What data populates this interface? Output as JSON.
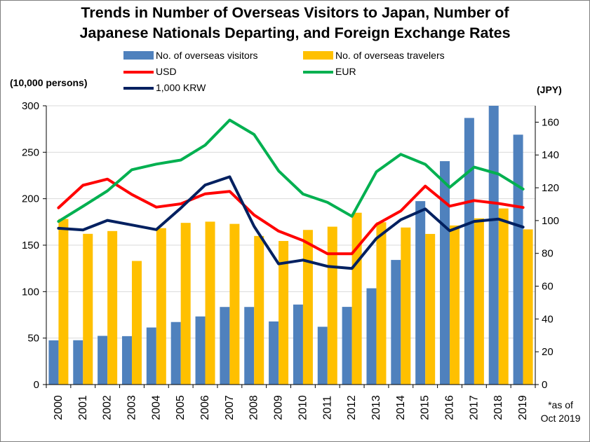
{
  "title_line1": "Trends in Number of Overseas Visitors to Japan, Number of",
  "title_line2": "Japanese Nationals Departing, and Foreign Exchange Rates",
  "left_unit": "(10,000 persons)",
  "right_unit": "(JPY)",
  "note_line1": "*as of",
  "note_line2": "Oct 2019",
  "colors": {
    "visitors": "#4f81bd",
    "travelers": "#ffc000",
    "usd": "#ff0000",
    "eur": "#00b050",
    "krw": "#002060",
    "grid": "#d9d9d9",
    "axis": "#000000"
  },
  "chart_data": {
    "type": "bar",
    "categories": [
      "2000",
      "2001",
      "2002",
      "2003",
      "2004",
      "2005",
      "2006",
      "2007",
      "2008",
      "2009",
      "2010",
      "2011",
      "2012",
      "2013",
      "2014",
      "2015",
      "2016",
      "2017",
      "2018",
      "2019"
    ],
    "series": [
      {
        "name": "No. of overseas visitors",
        "kind": "bar",
        "axis": "left",
        "color_key": "visitors",
        "values": [
          47.6,
          47.7,
          52.4,
          52.1,
          61.4,
          67.3,
          73.3,
          83.5,
          83.5,
          67.9,
          86.1,
          62.2,
          83.6,
          103.6,
          134.1,
          197.4,
          240.4,
          286.9,
          311.9,
          268.9
        ]
      },
      {
        "name": "No. of overseas travelers",
        "kind": "bar",
        "axis": "left",
        "color_key": "travelers",
        "values": [
          178.2,
          162.2,
          165.2,
          133.0,
          168.3,
          174.0,
          175.3,
          172.9,
          159.9,
          154.5,
          166.4,
          169.9,
          184.9,
          174.7,
          169.0,
          162.1,
          171.2,
          178.9,
          189.5,
          167.0
        ]
      },
      {
        "name": "USD",
        "kind": "line",
        "axis": "right",
        "color_key": "usd",
        "values": [
          107.8,
          121.5,
          125.3,
          115.9,
          108.2,
          110.2,
          116.3,
          117.8,
          103.4,
          93.6,
          87.8,
          79.8,
          79.8,
          97.6,
          105.9,
          121.0,
          108.8,
          112.2,
          110.4,
          108.0
        ]
      },
      {
        "name": "EUR",
        "kind": "line",
        "axis": "right",
        "color_key": "eur",
        "values": [
          99.5,
          108.7,
          118.1,
          131.0,
          134.4,
          136.9,
          146.0,
          161.3,
          152.5,
          130.3,
          116.2,
          111.1,
          102.6,
          129.7,
          140.4,
          134.3,
          120.3,
          132.6,
          128.4,
          119.2
        ]
      },
      {
        "name": "1,000 KRW",
        "kind": "line",
        "axis": "right",
        "color_key": "krw",
        "values": [
          95.3,
          94.3,
          100.1,
          97.3,
          94.5,
          107.6,
          121.7,
          126.7,
          96.5,
          73.6,
          75.9,
          72.1,
          70.8,
          89.1,
          100.5,
          107.1,
          93.8,
          99.5,
          100.9,
          96.0
        ]
      }
    ],
    "legend": [
      {
        "label": "No. of overseas visitors",
        "kind": "bar",
        "color_key": "visitors"
      },
      {
        "label": "No. of overseas travelers",
        "kind": "bar",
        "color_key": "travelers"
      },
      {
        "label": "USD",
        "kind": "line",
        "color_key": "usd"
      },
      {
        "label": "EUR",
        "kind": "line",
        "color_key": "eur"
      },
      {
        "label": "1,000 KRW",
        "kind": "line",
        "color_key": "krw"
      }
    ],
    "y_left": {
      "min": 0,
      "max": 300,
      "ticks": [
        "0",
        "50",
        "100",
        "150",
        "200",
        "250",
        "300"
      ]
    },
    "y_right": {
      "min": 0,
      "max": 170,
      "ticks": [
        "0",
        "20",
        "40",
        "60",
        "80",
        "100",
        "120",
        "140",
        "160"
      ]
    },
    "legend_position": "top",
    "grid": true
  }
}
